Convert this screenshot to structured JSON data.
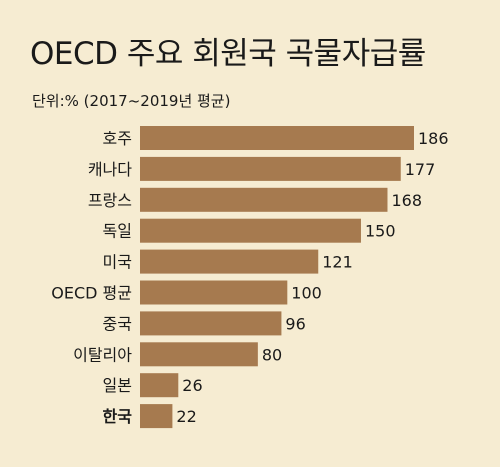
{
  "chart_data": {
    "type": "bar",
    "orientation": "horizontal",
    "title": "OECD 주요 회원국 곡물자급률",
    "subtitle": "단위:% (2017~2019년 평균)",
    "categories": [
      "호주",
      "캐나다",
      "프랑스",
      "독일",
      "미국",
      "OECD 평균",
      "중국",
      "이탈리아",
      "일본",
      "한국"
    ],
    "values": [
      186,
      177,
      168,
      150,
      121,
      100,
      96,
      80,
      26,
      22
    ],
    "value_labels": [
      "186",
      "177",
      "168",
      "150",
      "121",
      "100",
      "96",
      "80",
      "26",
      "22"
    ],
    "highlight_category": "한국",
    "xlim": [
      0,
      186
    ],
    "grid": false,
    "legend": "none"
  },
  "colors": {
    "background": "#f6ecd2",
    "bar": "#a67a4f",
    "text": "#1a1a1a",
    "highlight_value": "#d0282a"
  }
}
